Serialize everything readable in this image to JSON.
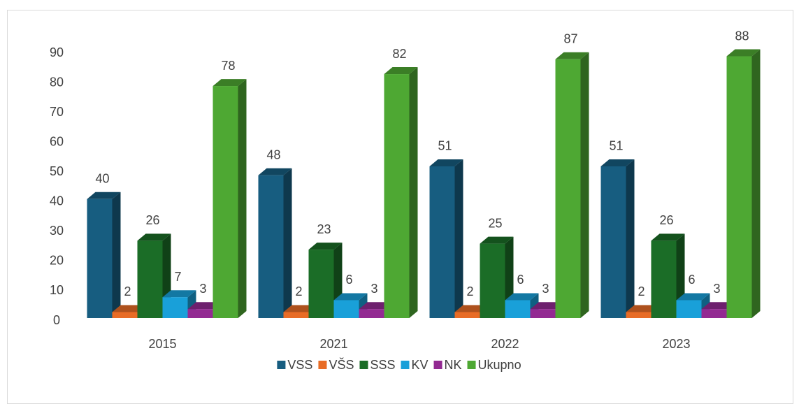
{
  "chart_data": {
    "type": "bar3d",
    "categories": [
      "2015",
      "2021",
      "2022",
      "2023"
    ],
    "series": [
      {
        "name": "VSS",
        "color": "#175d80",
        "values": [
          40,
          48,
          51,
          51
        ]
      },
      {
        "name": "VŠS",
        "color": "#e86c26",
        "values": [
          2,
          2,
          2,
          2
        ]
      },
      {
        "name": "SSS",
        "color": "#1b6d27",
        "values": [
          26,
          23,
          25,
          26
        ]
      },
      {
        "name": "KV",
        "color": "#19a0d9",
        "values": [
          7,
          6,
          6,
          6
        ]
      },
      {
        "name": "NK",
        "color": "#932a92",
        "values": [
          3,
          3,
          3,
          3
        ]
      },
      {
        "name": "Ukupno",
        "color": "#4ea833",
        "values": [
          78,
          82,
          87,
          88
        ]
      }
    ],
    "ylim": [
      0,
      90
    ],
    "yticks": [
      0,
      10,
      20,
      30,
      40,
      50,
      60,
      70,
      80,
      90
    ],
    "legend": "bottom"
  }
}
